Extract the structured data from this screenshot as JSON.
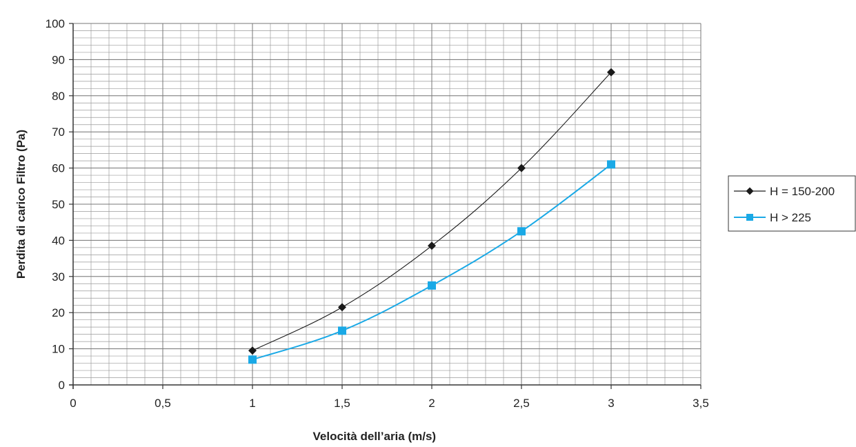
{
  "chart_data": {
    "type": "line",
    "title": "",
    "xlabel": "Velocità dell’aria (m/s)",
    "ylabel": "Perdita di carico Filtro (Pa)",
    "xlim": [
      0,
      3.5
    ],
    "ylim": [
      0,
      100
    ],
    "x_ticks": [
      "0",
      "0,5",
      "1",
      "1,5",
      "2",
      "2,5",
      "3",
      "3,5"
    ],
    "y_ticks": [
      "0",
      "10",
      "20",
      "30",
      "40",
      "50",
      "60",
      "70",
      "80",
      "90",
      "100"
    ],
    "grid": true,
    "legend_position": "right",
    "series": [
      {
        "name": "H = 150-200",
        "marker": "diamond",
        "color": "#1a1a1a",
        "x": [
          1,
          1.5,
          2,
          2.5,
          3
        ],
        "y": [
          9.5,
          21.5,
          38.5,
          60,
          86.5
        ]
      },
      {
        "name": "H > 225",
        "marker": "square",
        "color": "#1aa9e6",
        "x": [
          1,
          1.5,
          2,
          2.5,
          3
        ],
        "y": [
          7,
          15,
          27.5,
          42.5,
          61
        ]
      }
    ]
  }
}
